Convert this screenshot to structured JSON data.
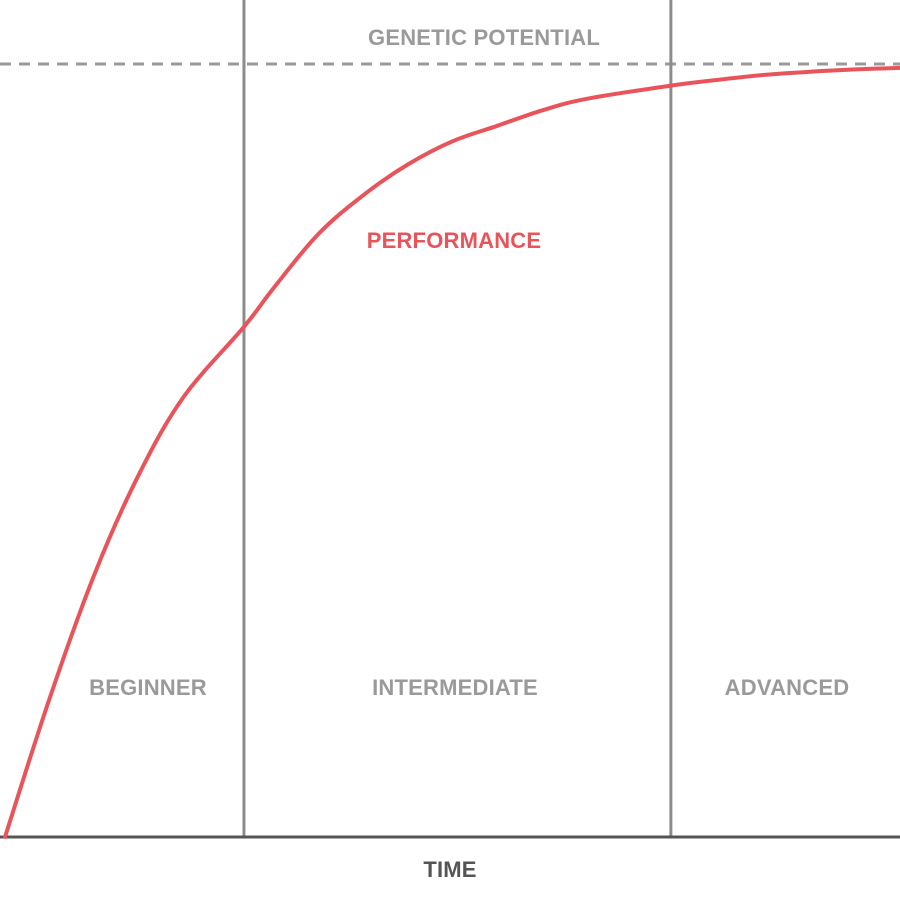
{
  "chart_data": {
    "type": "line",
    "title": "",
    "xlabel": "TIME",
    "ylabel": "",
    "xlim": [
      0,
      1
    ],
    "ylim": [
      0,
      1
    ],
    "grid": false,
    "reference_line": {
      "label": "GENETIC POTENTIAL",
      "y": 1.0,
      "style": "dashed",
      "color": "#999999"
    },
    "series": [
      {
        "name": "PERFORMANCE",
        "color": "#e8545a",
        "x": [
          0.0,
          0.05,
          0.1,
          0.15,
          0.2,
          0.267,
          0.3,
          0.35,
          0.4,
          0.45,
          0.5,
          0.55,
          0.6,
          0.65,
          0.744,
          0.8,
          0.85,
          0.9,
          0.95,
          1.0
        ],
        "y": [
          0.0,
          0.18,
          0.34,
          0.47,
          0.57,
          0.66,
          0.71,
          0.78,
          0.83,
          0.87,
          0.9,
          0.92,
          0.94,
          0.955,
          0.972,
          0.98,
          0.986,
          0.99,
          0.993,
          0.995
        ]
      }
    ],
    "regions": [
      {
        "label": "BEGINNER",
        "x_start": 0.0,
        "x_end": 0.267
      },
      {
        "label": "INTERMEDIATE",
        "x_start": 0.267,
        "x_end": 0.744
      },
      {
        "label": "ADVANCED",
        "x_start": 0.744,
        "x_end": 1.0
      }
    ],
    "colors": {
      "axis": "#555555",
      "divider": "#8c8c8c",
      "region_label": "#9a9a9a"
    }
  }
}
